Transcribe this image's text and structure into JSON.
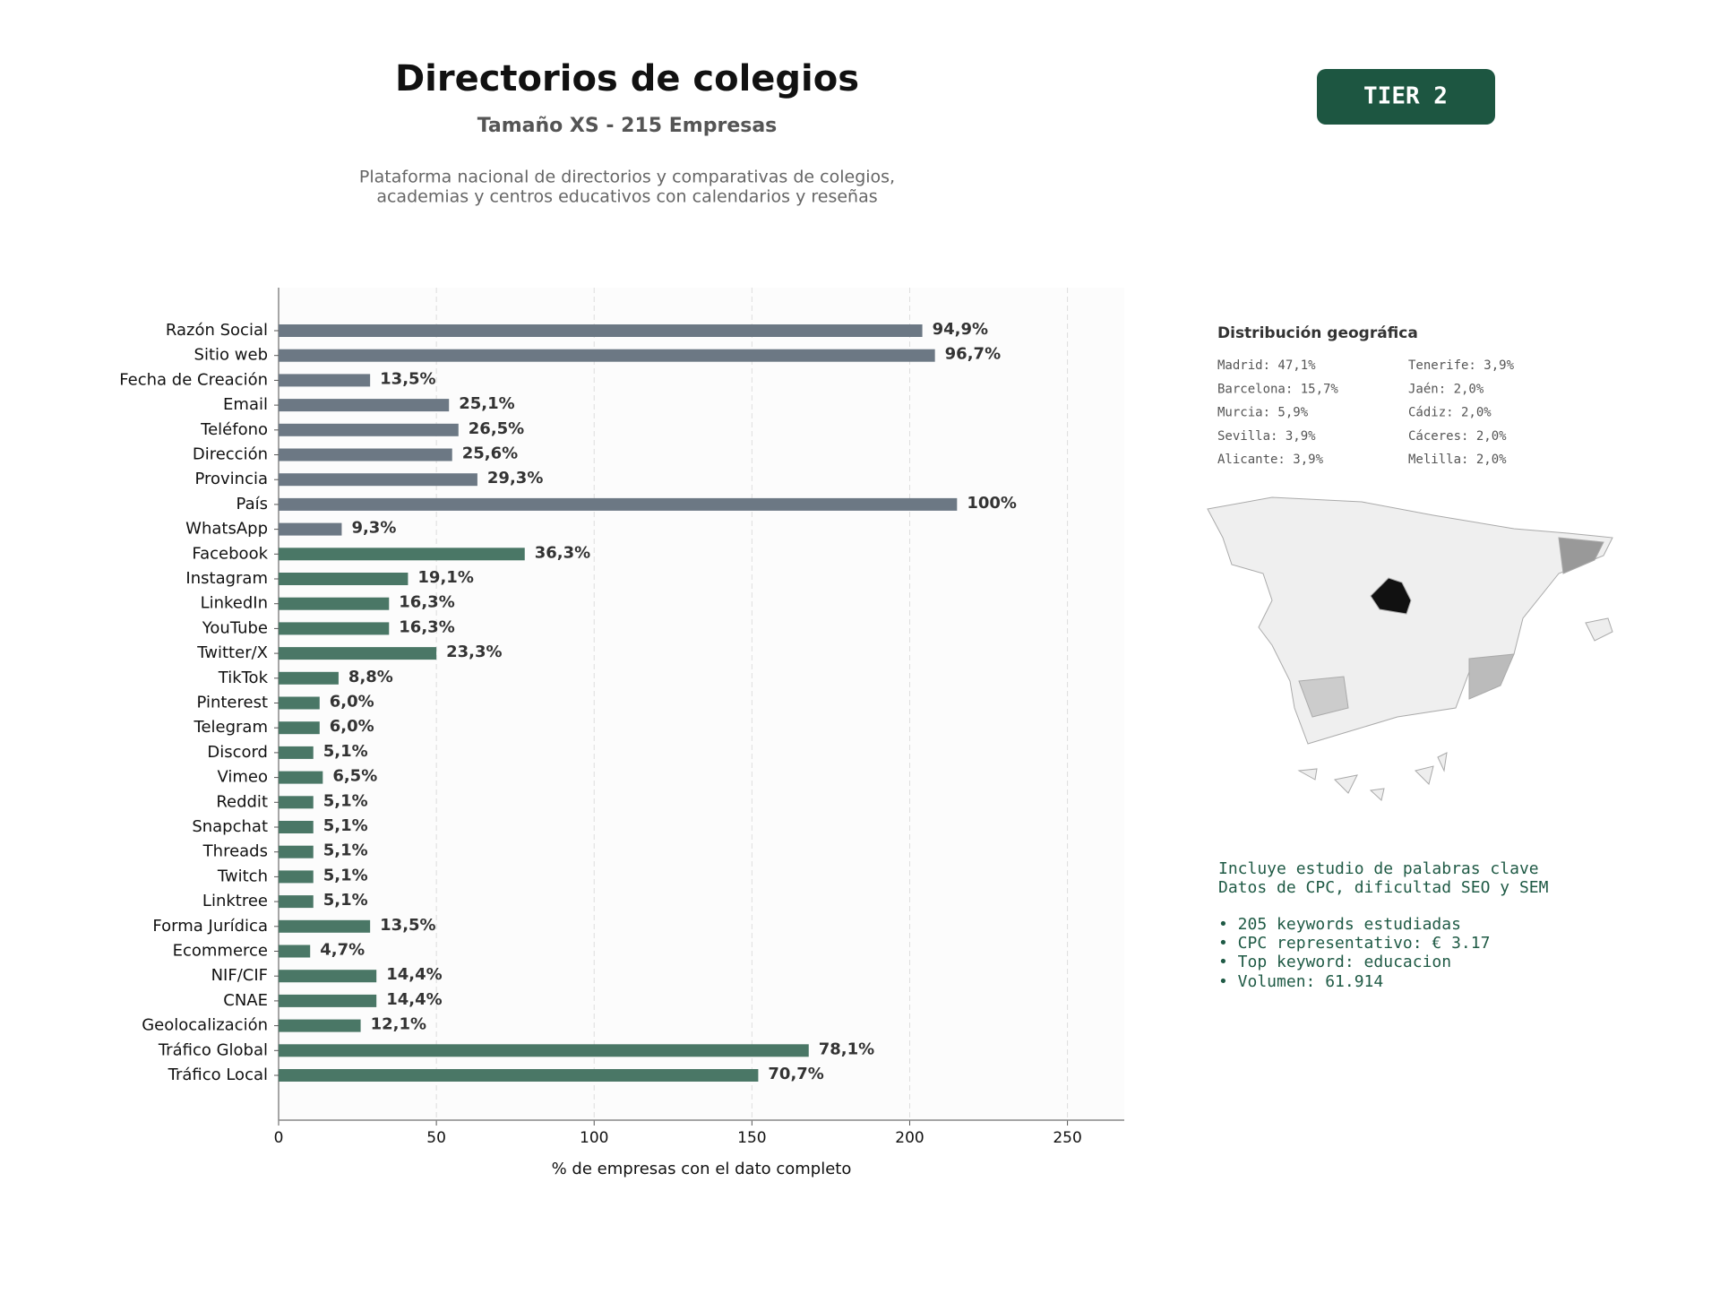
{
  "chart_data": {
    "type": "bar",
    "orientation": "horizontal",
    "title": "Directorios de colegios",
    "subtitle": "Tamaño XS - 215 Empresas",
    "description": [
      "Plataforma nacional de directorios y comparativas de colegios,",
      "academias y centros educativos con calendarios y reseñas"
    ],
    "xlabel": "% de empresas con el dato completo",
    "categories": [
      "Razón Social",
      "Sitio web",
      "Fecha de Creación",
      "Email",
      "Teléfono",
      "Dirección",
      "Provincia",
      "País",
      "WhatsApp",
      "Facebook",
      "Instagram",
      "LinkedIn",
      "YouTube",
      "Twitter/X",
      "TikTok",
      "Pinterest",
      "Telegram",
      "Discord",
      "Vimeo",
      "Reddit",
      "Snapchat",
      "Threads",
      "Twitch",
      "Linktree",
      "Forma Jurídica",
      "Ecommerce",
      "NIF/CIF",
      "CNAE",
      "Geolocalización",
      "Tráfico Global",
      "Tráfico Local"
    ],
    "values": [
      204,
      208,
      29,
      54,
      57,
      55,
      63,
      215,
      20,
      78,
      41,
      35,
      35,
      50,
      19,
      13,
      13,
      11,
      14,
      11,
      11,
      11,
      11,
      11,
      29,
      10,
      31,
      31,
      26,
      168,
      152
    ],
    "value_labels": [
      "94,9%",
      "96,7%",
      "13,5%",
      "25,1%",
      "26,5%",
      "25,6%",
      "29,3%",
      "100%",
      "9,3%",
      "36,3%",
      "19,1%",
      "16,3%",
      "16,3%",
      "23,3%",
      "8,8%",
      "6,0%",
      "6,0%",
      "5,1%",
      "6,5%",
      "5,1%",
      "5,1%",
      "5,1%",
      "5,1%",
      "5,1%",
      "13,5%",
      "4,7%",
      "14,4%",
      "14,4%",
      "12,1%",
      "78,1%",
      "70,7%"
    ],
    "colors": [
      "#6c7884",
      "#6c7884",
      "#6c7884",
      "#6c7884",
      "#6c7884",
      "#6c7884",
      "#6c7884",
      "#6c7884",
      "#6c7884",
      "#4a7766",
      "#4a7766",
      "#4a7766",
      "#4a7766",
      "#4a7766",
      "#4a7766",
      "#4a7766",
      "#4a7766",
      "#4a7766",
      "#4a7766",
      "#4a7766",
      "#4a7766",
      "#4a7766",
      "#4a7766",
      "#4a7766",
      "#4a7766",
      "#4a7766",
      "#4a7766",
      "#4a7766",
      "#4a7766",
      "#4a7766",
      "#4a7766"
    ],
    "xlim": [
      0,
      268
    ],
    "xticks": [
      0,
      50,
      100,
      150,
      200,
      250
    ],
    "grid": true
  },
  "badge": "TIER 2",
  "geo": {
    "title": "Distribución geográfica",
    "entries": [
      "Madrid: 47,1%",
      "Barcelona: 15,7%",
      "Murcia: 5,9%",
      "Sevilla: 3,9%",
      "Alicante: 3,9%",
      "Tenerife: 3,9%",
      "Jaén: 2,0%",
      "Cádiz: 2,0%",
      "Cáceres: 2,0%",
      "Melilla: 2,0%"
    ]
  },
  "keywords": [
    "Incluye estudio de palabras clave",
    "Datos de CPC, dificultad SEO y SEM",
    "• 205 keywords estudiadas",
    "• CPC representativo: € 3.17",
    "• Top keyword: educacion",
    "• Volumen: 61.914"
  ]
}
